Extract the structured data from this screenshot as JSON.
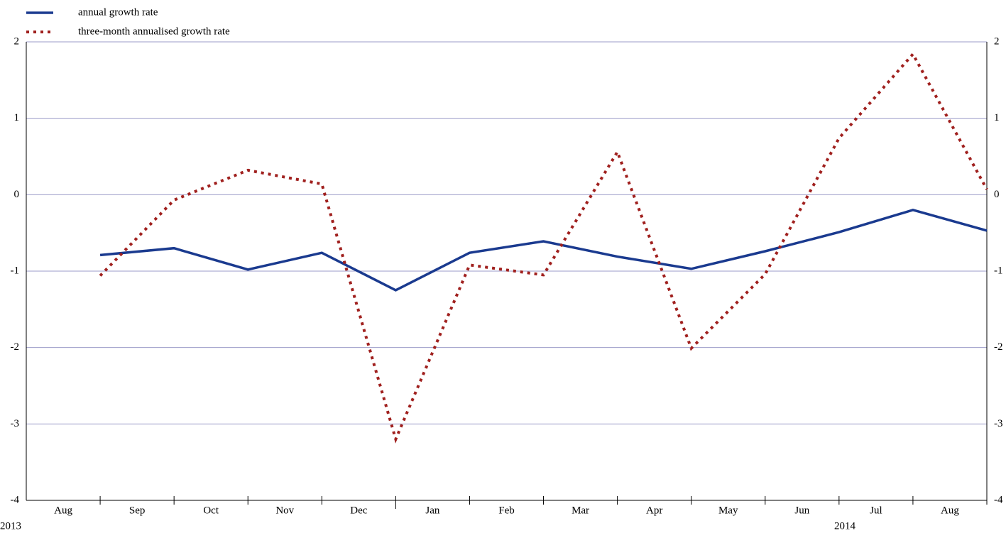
{
  "chart_data": {
    "type": "line",
    "categories": [
      "Aug",
      "Sep",
      "Oct",
      "Nov",
      "Dec",
      "Jan",
      "Feb",
      "Mar",
      "Apr",
      "May",
      "Jun",
      "Jul",
      "Aug"
    ],
    "year_labels": [
      "2013",
      "2014"
    ],
    "series": [
      {
        "name": "annual growth rate",
        "color": "#1a3a8f",
        "dash": "solid",
        "values": [
          -0.79,
          -0.7,
          -0.98,
          -0.76,
          -1.25,
          -0.76,
          -0.61,
          -0.81,
          -0.97,
          -0.74,
          -0.49,
          -0.2,
          -0.47
        ]
      },
      {
        "name": "three-month annualised growth rate",
        "color": "#a0201e",
        "dash": "dotted",
        "values": [
          -1.06,
          -0.07,
          0.32,
          0.14,
          -3.2,
          -0.92,
          -1.05,
          0.56,
          -2.01,
          -1.04,
          0.74,
          1.84,
          0.07
        ]
      }
    ],
    "ylim": [
      -4,
      2
    ],
    "yticks": [
      -4,
      -3,
      -2,
      -1,
      0,
      1,
      2
    ],
    "mirror_y_axis": true,
    "grid": true
  }
}
